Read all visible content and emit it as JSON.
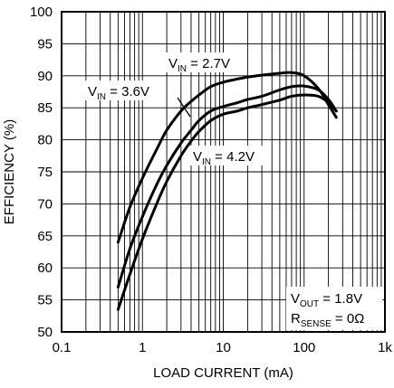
{
  "chart_data": {
    "type": "line",
    "x_scale": "log",
    "xlim": [
      0.1,
      1000
    ],
    "ylim": [
      50,
      100
    ],
    "grid": true,
    "xlabel": "LOAD CURRENT (mA)",
    "ylabel": "EFFICIENCY (%)",
    "x_tick_labels": [
      "0.1",
      "1",
      "10",
      "100",
      "1k"
    ],
    "x_tick_values": [
      0.1,
      1,
      10,
      100,
      1000
    ],
    "y_ticks": [
      50,
      55,
      60,
      65,
      70,
      75,
      80,
      85,
      90,
      95,
      100
    ],
    "series": [
      {
        "name": "VIN = 2.7V",
        "label_main": "V",
        "label_sub": "IN",
        "label_rest": " = 2.7V",
        "x": [
          0.5,
          0.7,
          1,
          1.5,
          2,
          3,
          4,
          5,
          7,
          10,
          15,
          20,
          30,
          50,
          70,
          100,
          150,
          200,
          250
        ],
        "y": [
          64,
          69.5,
          74,
          78.5,
          81.5,
          84.5,
          86,
          87,
          88.3,
          89,
          89.5,
          89.8,
          90.1,
          90.4,
          90.5,
          90,
          88,
          85.5,
          83.5
        ]
      },
      {
        "name": "VIN = 3.6V",
        "label_main": "V",
        "label_sub": "IN",
        "label_rest": " = 3.6V",
        "x": [
          0.5,
          0.7,
          1,
          1.5,
          2,
          3,
          4,
          5,
          7,
          10,
          15,
          20,
          30,
          50,
          70,
          100,
          150,
          200,
          250
        ],
        "y": [
          57,
          63,
          68,
          73,
          76,
          79.5,
          81.5,
          83,
          84.5,
          85.2,
          85.8,
          86.3,
          86.8,
          87.8,
          88.3,
          88.4,
          87.8,
          86.3,
          84.5
        ]
      },
      {
        "name": "VIN = 4.2V",
        "label_main": "V",
        "label_sub": "IN",
        "label_rest": " = 4.2V",
        "x": [
          0.5,
          0.7,
          1,
          1.5,
          2,
          3,
          4,
          5,
          7,
          10,
          15,
          20,
          30,
          50,
          70,
          100,
          150,
          200,
          250
        ],
        "y": [
          53.5,
          59,
          64.5,
          70,
          73.5,
          77.5,
          79.8,
          81.3,
          83,
          84,
          84.5,
          85,
          85.5,
          86.2,
          86.8,
          87,
          86.8,
          85.8,
          84.5
        ]
      }
    ],
    "annotations": [
      {
        "main": "V",
        "sub": "OUT",
        "rest": " = 1.8V"
      },
      {
        "main": "R",
        "sub": "SENSE",
        "rest": " = 0Ω"
      }
    ]
  }
}
